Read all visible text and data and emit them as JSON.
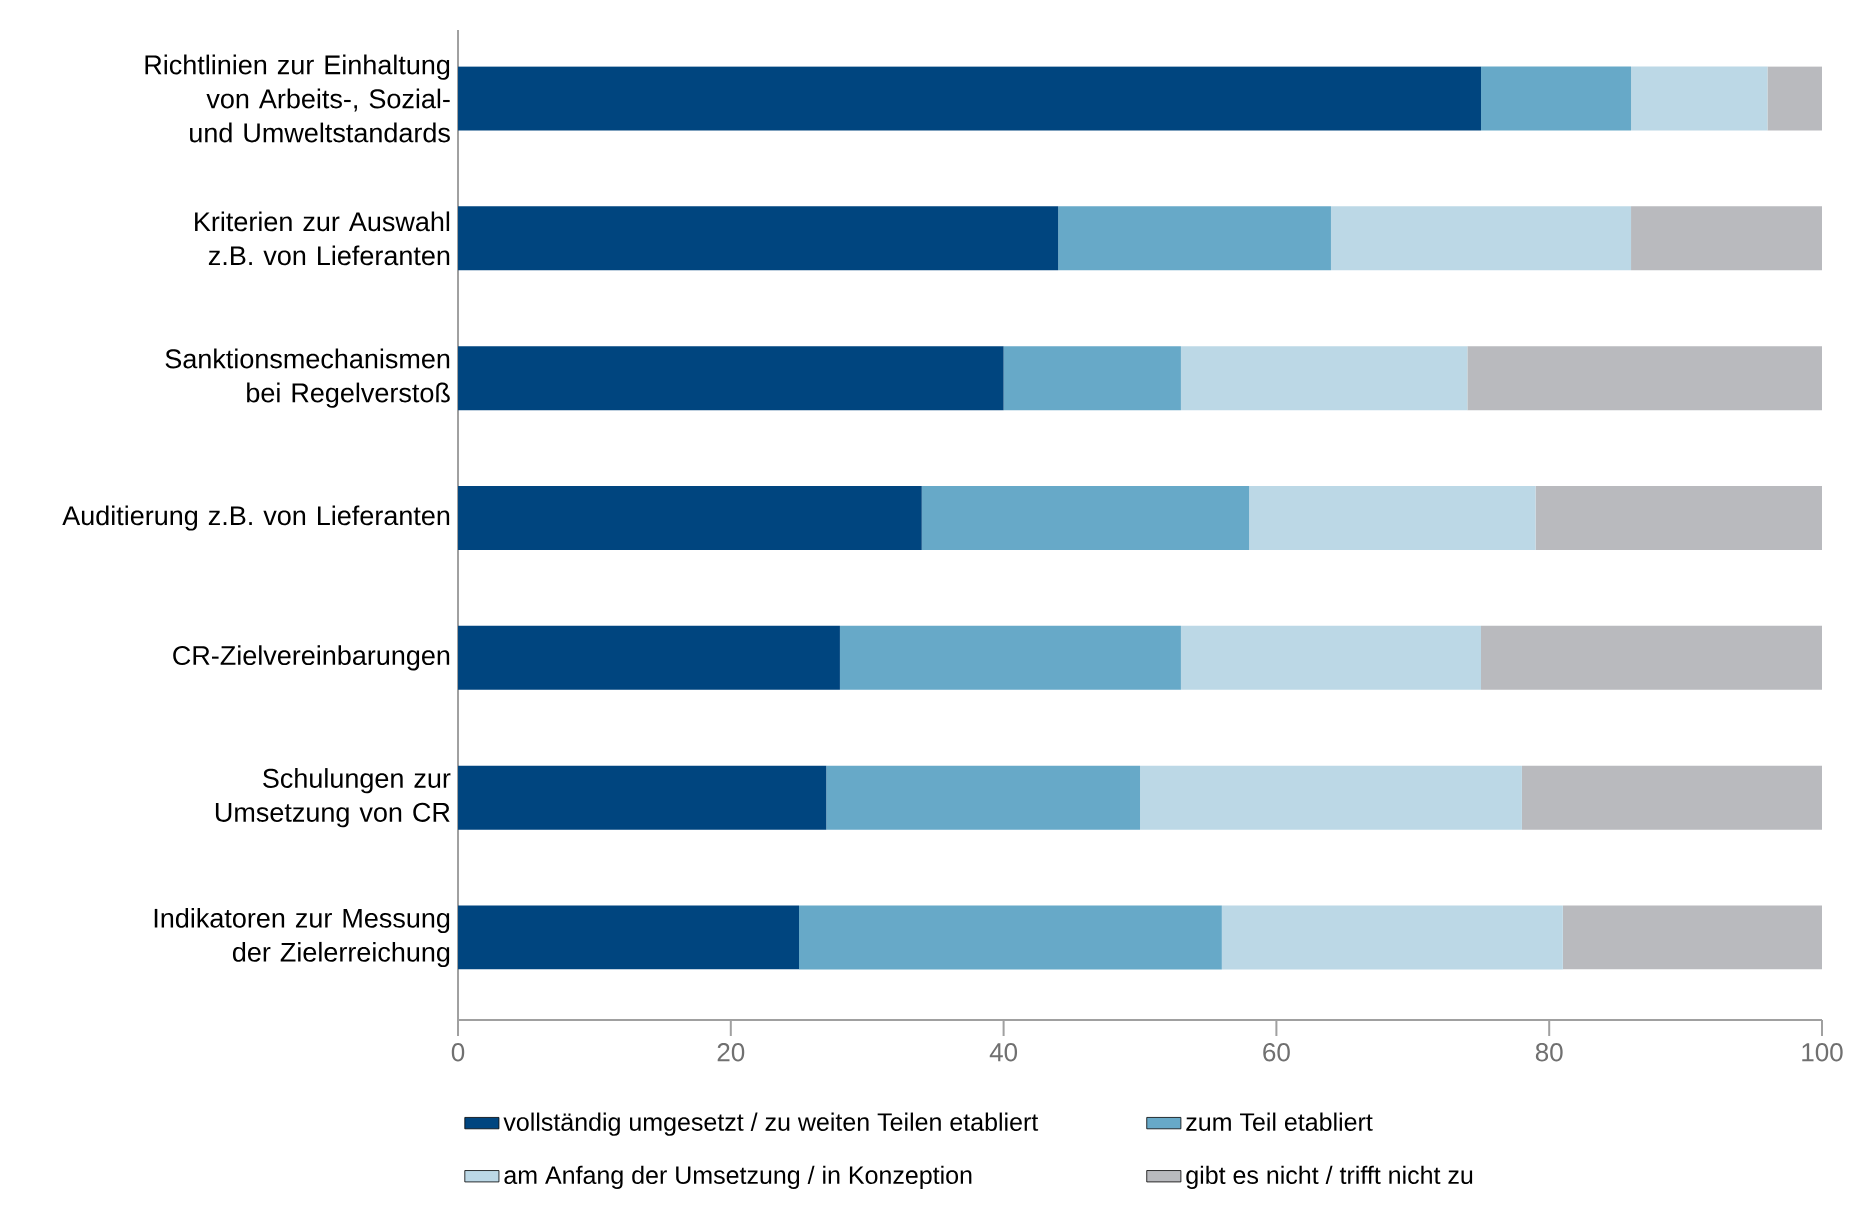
{
  "chart_data": {
    "type": "bar",
    "orientation": "horizontal",
    "stacked": true,
    "categories": [
      "Richtlinien zur Einhaltung von Arbeits-, Sozial- und Umweltstandards",
      "Kriterien zur Auswahl z.B. von Lieferanten",
      "Sanktionsmechanismen bei Regelverstoß",
      "Auditierung z.B. von Lieferanten",
      "CR-Zielvereinbarungen",
      "Schulungen zur Umsetzung von CR",
      "Indikatoren zur Messung der Zielerreichung"
    ],
    "series": [
      {
        "name": "vollständig umgesetzt / zu weiten Teilen etabliert",
        "color": "#00457f",
        "values": [
          75,
          44,
          40,
          34,
          28,
          27,
          25
        ]
      },
      {
        "name": "zum Teil etabliert",
        "color": "#67a9c8",
        "values": [
          11,
          20,
          13,
          24,
          25,
          23,
          31
        ]
      },
      {
        "name": "am Anfang der Umsetzung / in Konzeption",
        "color": "#bcd8e6",
        "values": [
          10,
          22,
          21,
          21,
          22,
          28,
          25
        ]
      },
      {
        "name": "gibt es nicht / trifft nicht zu",
        "color": "#b9babe",
        "values": [
          4,
          14,
          26,
          21,
          25,
          22,
          19
        ]
      }
    ],
    "xlim": [
      0,
      100
    ],
    "xticks": [
      0,
      20,
      40,
      60,
      80,
      100
    ],
    "grid": false,
    "legend": "bottom"
  }
}
